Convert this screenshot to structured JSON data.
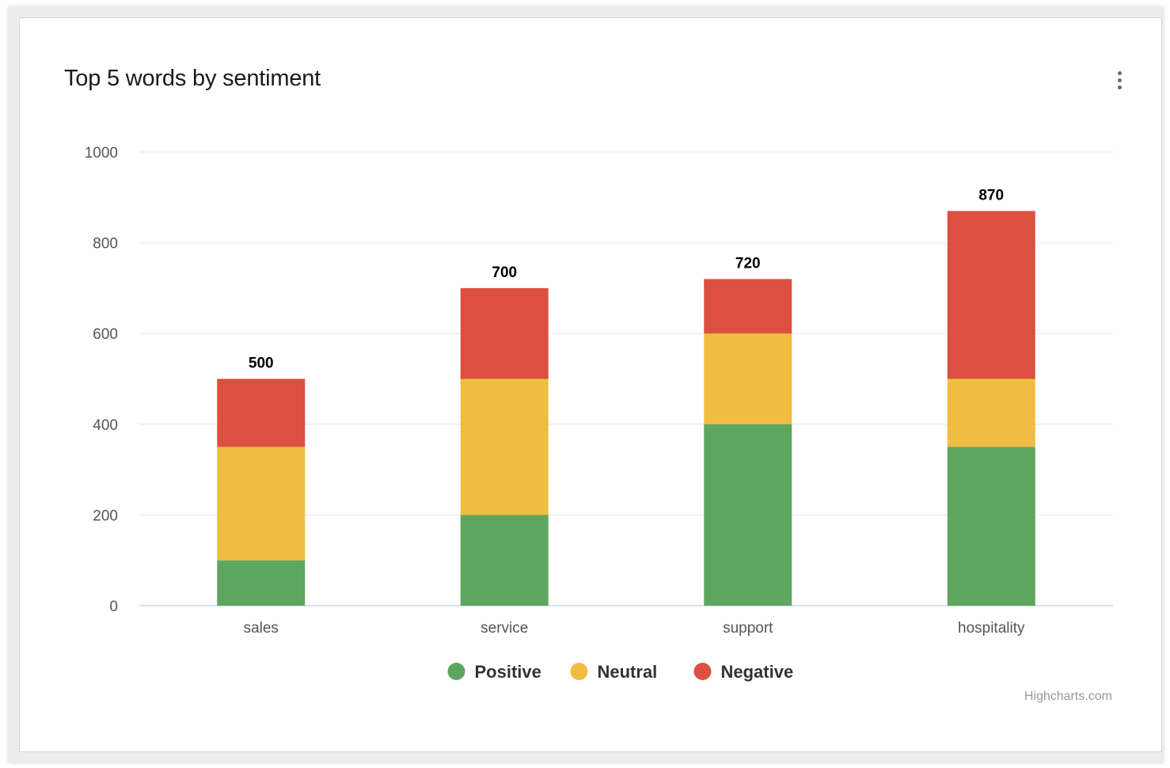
{
  "title": "Top 5 words by sentiment",
  "menu_icon": "kebab-menu-icon",
  "credits": "Highcharts.com",
  "chart_data": {
    "type": "bar",
    "stacked": true,
    "title": "Top 5 words by sentiment",
    "categories": [
      "sales",
      "service",
      "support",
      "hospitality"
    ],
    "series": [
      {
        "name": "Positive",
        "color": "#5da65f",
        "values": [
          100,
          200,
          400,
          350
        ]
      },
      {
        "name": "Neutral",
        "color": "#efbd41",
        "values": [
          250,
          300,
          200,
          150
        ]
      },
      {
        "name": "Negative",
        "color": "#db5040",
        "values": [
          150,
          200,
          120,
          370
        ]
      }
    ],
    "totals": [
      500,
      700,
      720,
      870
    ],
    "ylim": [
      0,
      1000
    ],
    "yticks": [
      0,
      200,
      400,
      600,
      800,
      1000
    ],
    "xlabel": "",
    "ylabel": "",
    "grid": true,
    "legend": "bottom-center"
  }
}
